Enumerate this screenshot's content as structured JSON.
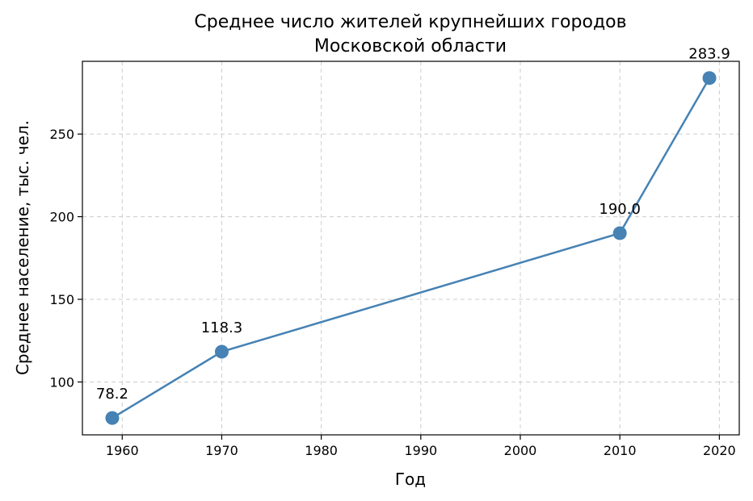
{
  "chart_data": {
    "type": "line",
    "title_lines": [
      "Среднее число жителей крупнейших городов",
      "Московской области"
    ],
    "xlabel": "Год",
    "ylabel": "Среднее население, тыс. чел.",
    "x": [
      1959,
      1970,
      2010,
      2019
    ],
    "series": [
      {
        "values": [
          78.2,
          118.3,
          190.0,
          283.9
        ],
        "data_labels": [
          "78.2",
          "118.3",
          "190.0",
          "283.9"
        ]
      }
    ],
    "xlim": [
      1956,
      2022
    ],
    "ylim": [
      68,
      294
    ],
    "x_ticks": [
      1960,
      1970,
      1980,
      1990,
      2000,
      2010,
      2020
    ],
    "x_tick_labels": [
      "1960",
      "1970",
      "1980",
      "1990",
      "2000",
      "2010",
      "2020"
    ],
    "y_ticks": [
      100,
      150,
      200,
      250
    ],
    "y_tick_labels": [
      "100",
      "150",
      "200",
      "250"
    ],
    "grid": true,
    "color": "#4682b4",
    "grid_color": "#cccccc"
  }
}
